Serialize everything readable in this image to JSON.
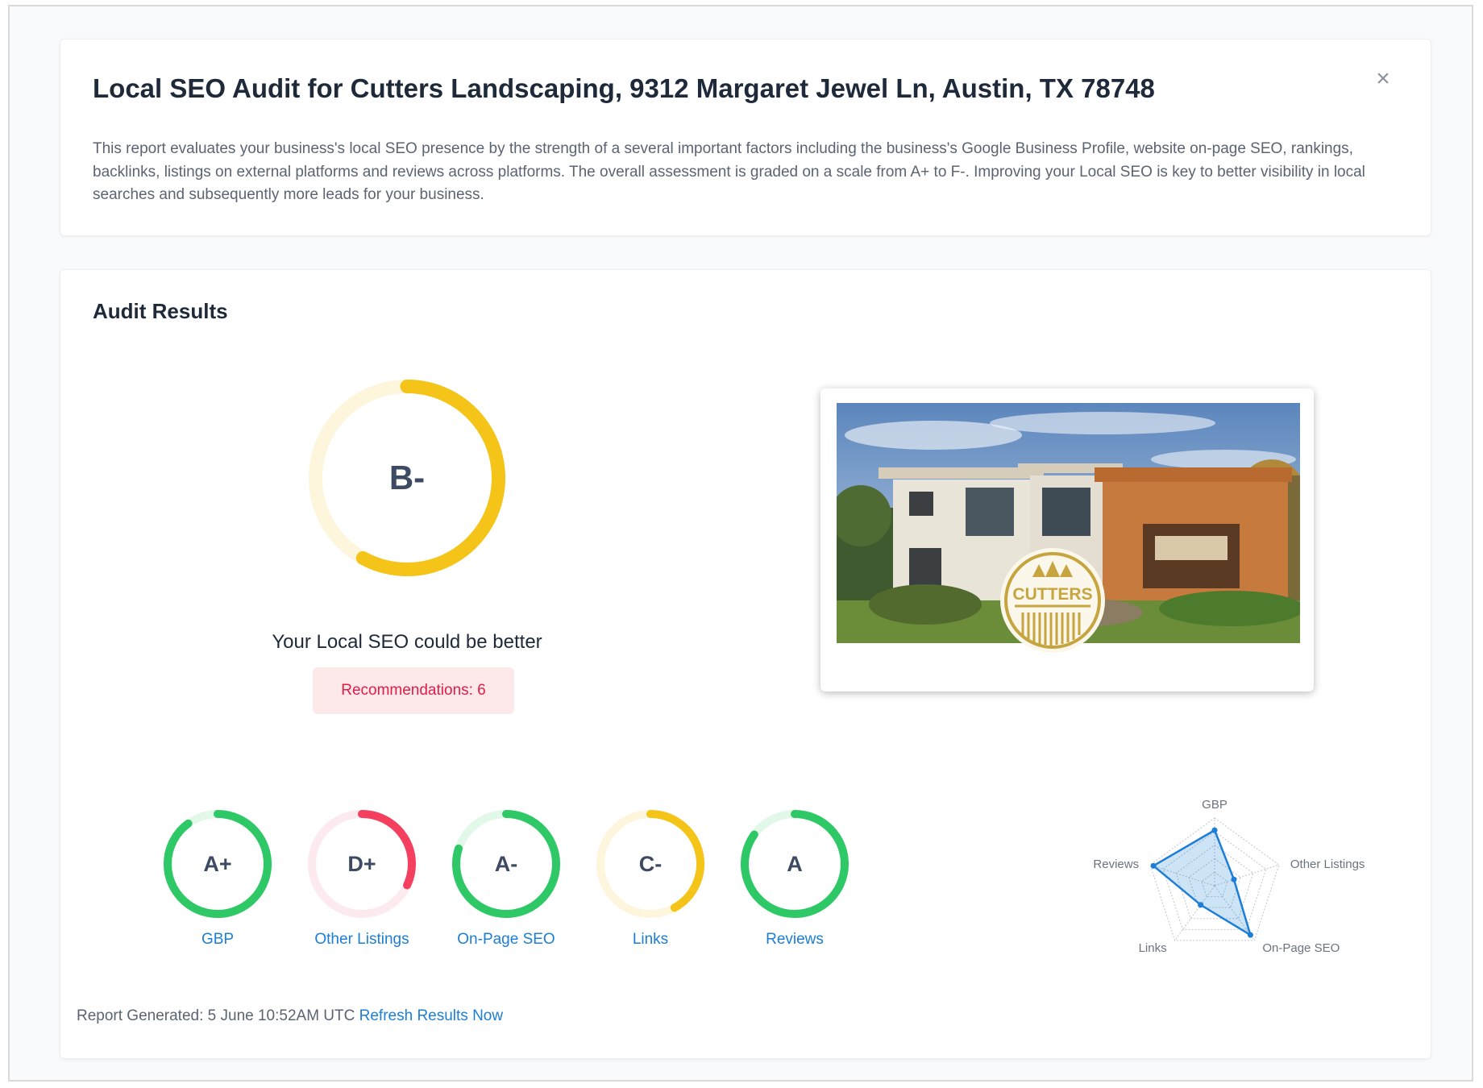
{
  "header": {
    "title": "Local SEO Audit for Cutters Landscaping, 9312 Margaret Jewel Ln, Austin, TX 78748",
    "close_glyph": "×",
    "description": "This report evaluates your business's local SEO presence by the strength of a several important factors including the business's Google Business Profile, website on-page SEO, rankings, backlinks, listings on external platforms and reviews across platforms. The overall assessment is graded on a scale from A+ to F-. Improving your Local SEO is key to better visibility in local searches and subsequently more leads for your business."
  },
  "results": {
    "title": "Audit Results",
    "overall": {
      "grade": "B-",
      "fraction": 0.58,
      "color": "#f5c419",
      "track": "#fdf6dc"
    },
    "verdict": "Your Local SEO could be better",
    "recommendations": "Recommendations: 6",
    "logo_text": "CUTTERS",
    "categories": [
      {
        "label": "GBP",
        "grade": "A+",
        "fraction": 0.9,
        "color": "#2ec866",
        "track": "#e2f8e9"
      },
      {
        "label": "Other Listings",
        "grade": "D+",
        "fraction": 0.32,
        "color": "#f43f5e",
        "track": "#fdeaee"
      },
      {
        "label": "On-Page SEO",
        "grade": "A-",
        "fraction": 0.8,
        "color": "#2ec866",
        "track": "#e2f8e9"
      },
      {
        "label": "Links",
        "grade": "C-",
        "fraction": 0.42,
        "color": "#f5c419",
        "track": "#fdf6dc"
      },
      {
        "label": "Reviews",
        "grade": "A",
        "fraction": 0.85,
        "color": "#2ec866",
        "track": "#e2f8e9"
      }
    ],
    "radar": {
      "axes": [
        "GBP",
        "Other Listings",
        "On-Page SEO",
        "Links",
        "Reviews"
      ],
      "values": [
        0.82,
        0.3,
        0.9,
        0.35,
        0.95
      ],
      "color": "#1c7ed6"
    },
    "footer": {
      "generated": "Report Generated: 5 June 10:52AM UTC",
      "refresh": "Refresh Results Now"
    }
  }
}
